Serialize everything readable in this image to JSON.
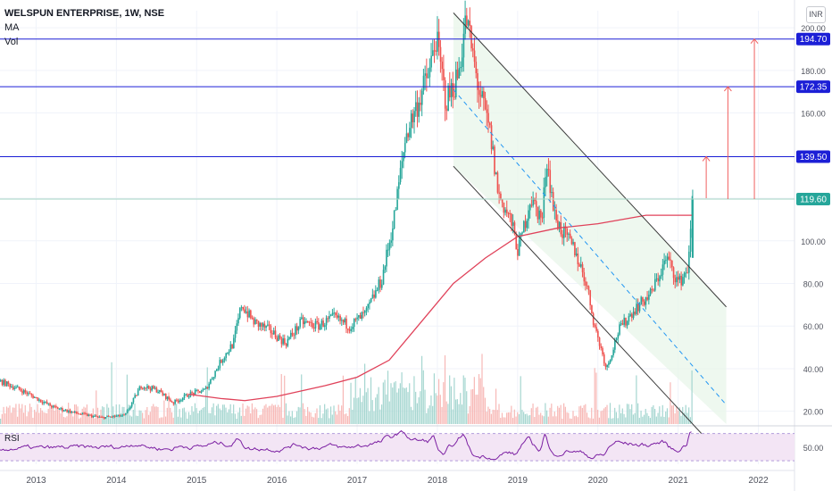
{
  "header": {
    "title": "WELSPUN ENTERPRISE, 1W, NSE",
    "ma_label": "MA",
    "vol_label": "Vol",
    "currency": "INR",
    "rsi_label": "RSI"
  },
  "colors": {
    "up": "#26a69a",
    "down": "#ef5350",
    "ma": "#e0425a",
    "level": "#1c1fd6",
    "channel": "#3a3a3a",
    "channel_fill": "#e8f5e9",
    "midline": "#2196f3",
    "target_arrow": "#f06060",
    "rsi_line": "#7b1fa2",
    "rsi_band": "#f3e5f5"
  },
  "chart_data": {
    "type": "candlestick",
    "title": "WELSPUN ENTERPRISE, 1W, NSE",
    "ylim": [
      14,
      208
    ],
    "y_ticks": [
      "20.00",
      "40.00",
      "60.00",
      "80.00",
      "100.00",
      "120.00",
      "140.00",
      "160.00",
      "180.00",
      "200.00"
    ],
    "x_ticks": [
      "2013",
      "2014",
      "2015",
      "2016",
      "2017",
      "2018",
      "2019",
      "2020",
      "2021",
      "2022"
    ],
    "x_tick_years": [
      2013,
      2014,
      2015,
      2016,
      2017,
      2018,
      2019,
      2020,
      2021,
      2022
    ],
    "xlim": [
      2012.55,
      2022.45
    ],
    "price_path": [
      [
        2012.55,
        34
      ],
      [
        2012.8,
        30
      ],
      [
        2013.0,
        26
      ],
      [
        2013.2,
        22
      ],
      [
        2013.5,
        19
      ],
      [
        2013.8,
        17
      ],
      [
        2014.1,
        18
      ],
      [
        2014.3,
        32
      ],
      [
        2014.5,
        30
      ],
      [
        2014.7,
        24
      ],
      [
        2014.9,
        28
      ],
      [
        2015.1,
        30
      ],
      [
        2015.3,
        44
      ],
      [
        2015.45,
        52
      ],
      [
        2015.55,
        70
      ],
      [
        2015.7,
        62
      ],
      [
        2015.9,
        58
      ],
      [
        2016.1,
        52
      ],
      [
        2016.3,
        62
      ],
      [
        2016.5,
        60
      ],
      [
        2016.7,
        64
      ],
      [
        2016.9,
        60
      ],
      [
        2017.1,
        66
      ],
      [
        2017.3,
        82
      ],
      [
        2017.45,
        110
      ],
      [
        2017.6,
        150
      ],
      [
        2017.75,
        165
      ],
      [
        2017.9,
        180
      ],
      [
        2017.97,
        196
      ],
      [
        2018.1,
        165
      ],
      [
        2018.25,
        178
      ],
      [
        2018.35,
        205
      ],
      [
        2018.5,
        172
      ],
      [
        2018.65,
        150
      ],
      [
        2018.75,
        122
      ],
      [
        2018.9,
        110
      ],
      [
        2019.0,
        95
      ],
      [
        2019.15,
        120
      ],
      [
        2019.3,
        110
      ],
      [
        2019.35,
        140
      ],
      [
        2019.45,
        112
      ],
      [
        2019.55,
        104
      ],
      [
        2019.7,
        96
      ],
      [
        2019.85,
        80
      ],
      [
        2019.95,
        60
      ],
      [
        2020.1,
        40
      ],
      [
        2020.25,
        58
      ],
      [
        2020.45,
        68
      ],
      [
        2020.65,
        75
      ],
      [
        2020.85,
        92
      ],
      [
        2021.0,
        80
      ],
      [
        2021.12,
        88
      ],
      [
        2021.17,
        119.6
      ]
    ],
    "ma_path": [
      [
        2014.9,
        28
      ],
      [
        2015.3,
        26
      ],
      [
        2015.6,
        25
      ],
      [
        2016.0,
        27
      ],
      [
        2016.6,
        32
      ],
      [
        2017.0,
        36
      ],
      [
        2017.4,
        44
      ],
      [
        2017.8,
        62
      ],
      [
        2018.2,
        80
      ],
      [
        2018.6,
        92
      ],
      [
        2019.0,
        102
      ],
      [
        2019.5,
        106
      ],
      [
        2020.0,
        108
      ],
      [
        2020.6,
        112
      ],
      [
        2021.17,
        112
      ]
    ],
    "levels": [
      {
        "value": 194.7,
        "label": "194.70"
      },
      {
        "value": 172.35,
        "label": "172.35"
      },
      {
        "value": 139.5,
        "label": "139.50"
      },
      {
        "value": 119.6,
        "label": "119.60"
      }
    ],
    "channel": {
      "upper": [
        [
          2018.2,
          207
        ],
        [
          2021.6,
          69
        ]
      ],
      "lower": [
        [
          2018.2,
          135
        ],
        [
          2021.6,
          -3
        ]
      ],
      "mid": [
        [
          2018.2,
          171
        ],
        [
          2021.6,
          23
        ]
      ]
    },
    "target_arrows": [
      {
        "x": 2021.35,
        "from": 120,
        "to": 139.5
      },
      {
        "x": 2021.62,
        "from": 119.6,
        "to": 172.35
      },
      {
        "x": 2021.95,
        "from": 119.6,
        "to": 194.7
      }
    ],
    "volume_ylim": [
      0,
      100
    ],
    "rsi": {
      "ylim": [
        25,
        80
      ],
      "levels": [
        70,
        30
      ],
      "tick_label": "50.00",
      "tick_value": 50
    }
  }
}
